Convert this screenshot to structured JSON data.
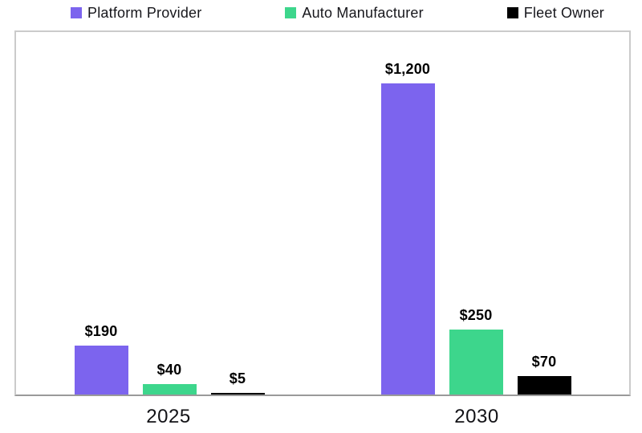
{
  "chart_data": {
    "type": "bar",
    "categories": [
      "2025",
      "2030"
    ],
    "series": [
      {
        "name": "Platform Provider",
        "color": "#7C64EE",
        "values": [
          190,
          1200
        ],
        "labels": [
          "$190",
          "$1,200"
        ]
      },
      {
        "name": "Auto Manufacturer",
        "color": "#3DD68C",
        "values": [
          40,
          250
        ],
        "labels": [
          "$40",
          "$250"
        ]
      },
      {
        "name": "Fleet Owner",
        "color": "#000000",
        "values": [
          5,
          70
        ],
        "labels": [
          "$5",
          "$70"
        ]
      }
    ],
    "title": "",
    "xlabel": "",
    "ylabel": "",
    "ylim": [
      0,
      1400
    ],
    "grid": false,
    "legend_position": "top",
    "value_label_prefix": "$"
  },
  "colors": {
    "plot_border": "#cbcbcb",
    "axis_line": "#9a9a9a",
    "value_label_text": "#000000",
    "axis_label_text": "#121216",
    "background": "#ffffff"
  }
}
